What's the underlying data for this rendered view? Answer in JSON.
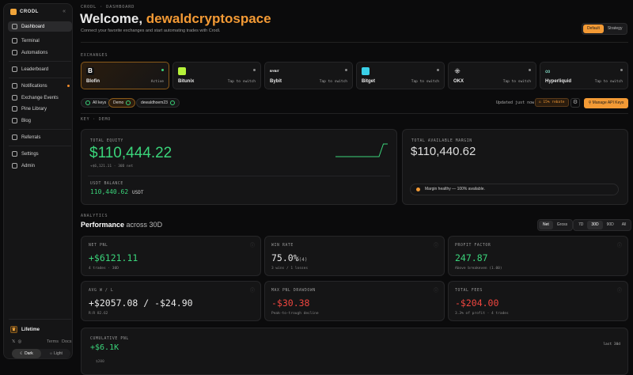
{
  "sidebar": {
    "brand": "CRODL",
    "items": [
      {
        "label": "Dashboard"
      },
      {
        "label": "Terminal"
      },
      {
        "label": "Automations"
      },
      {
        "label": "Leaderboard"
      },
      {
        "label": "Notifications"
      },
      {
        "label": "Exchange Events"
      },
      {
        "label": "Pine Library"
      },
      {
        "label": "Blog"
      },
      {
        "label": "Referrals"
      },
      {
        "label": "Settings"
      },
      {
        "label": "Admin"
      }
    ],
    "plan": "Lifetime",
    "links": {
      "terms": "Terms",
      "docs": "Docs"
    },
    "theme": {
      "dark": "Dark",
      "light": "Light"
    }
  },
  "header": {
    "breadcrumb": "CRODL · DASHBOARD",
    "welcome": "Welcome,",
    "username": "dewaldcryptospace",
    "subtitle": "Connect your favorite exchanges and start automating trades with Crodl.",
    "view_default": "Default",
    "view_strategy": "Strategy"
  },
  "exchanges": {
    "title": "EXCHANGES",
    "items": [
      {
        "name": "Blofin",
        "status": "Active"
      },
      {
        "name": "Bitunix",
        "status": "Tap to switch"
      },
      {
        "name": "Bybit",
        "status": "Tap to switch",
        "logo": "BYBIT"
      },
      {
        "name": "Bitget",
        "status": "Tap to switch"
      },
      {
        "name": "OKX",
        "status": "Tap to switch"
      },
      {
        "name": "Hyperliquid",
        "status": "Tap to switch"
      }
    ],
    "filters": {
      "all": "All keys",
      "demo": "Demo",
      "account": "dewaldhoem23"
    },
    "updated": "Updated just now",
    "rebate": "15% rebate",
    "manage": "Manage API Keys"
  },
  "key_section": "KEY · DEMO",
  "equity": {
    "label": "TOTAL EQUITY",
    "value": "$110,444.22",
    "change": "+$6,121.11 · 30D net",
    "usdt_label": "USDT BALANCE",
    "usdt_value": "110,440.62",
    "usdt_unit": "USDT"
  },
  "margin": {
    "label": "TOTAL AVAILABLE MARGIN",
    "value": "$110,440.62",
    "note": "Margin healthy — 100% available."
  },
  "analytics": {
    "title": "ANALYTICS",
    "heading": "Performance",
    "heading_suffix": "across 30D",
    "mode": [
      "Net",
      "Gross"
    ],
    "ranges": [
      "7D",
      "30D",
      "90D",
      "All"
    ]
  },
  "metrics": [
    {
      "label": "NET PNL",
      "value": "+$6121.11",
      "sub": "4 trades · 30D"
    },
    {
      "label": "WIN RATE",
      "value": "75.0%",
      "extra": "(4)",
      "sub": "3 wins / 1 losses"
    },
    {
      "label": "PROFIT FACTOR",
      "value": "247.87",
      "sub": "Above breakeven (1.00)"
    },
    {
      "label": "AVG W / L",
      "value": "+$2057.08 / -$24.90",
      "sub": "R:R 82.62"
    },
    {
      "label": "MAX PNL DRAWDOWN",
      "value": "-$30.38",
      "sub": "Peak-to-trough decline"
    },
    {
      "label": "TOTAL FEES",
      "value": "-$204.00",
      "sub": "3.3% of profit · 4 trades"
    }
  ],
  "cumulative": {
    "label": "CUMULATIVE PNL",
    "value": "+$6.1K",
    "range": "last 30d",
    "partial": "$200"
  },
  "chart_data": {
    "type": "line",
    "values": [
      0,
      0,
      0,
      0,
      0,
      0,
      0,
      0,
      0,
      0,
      0,
      1,
      1
    ]
  }
}
